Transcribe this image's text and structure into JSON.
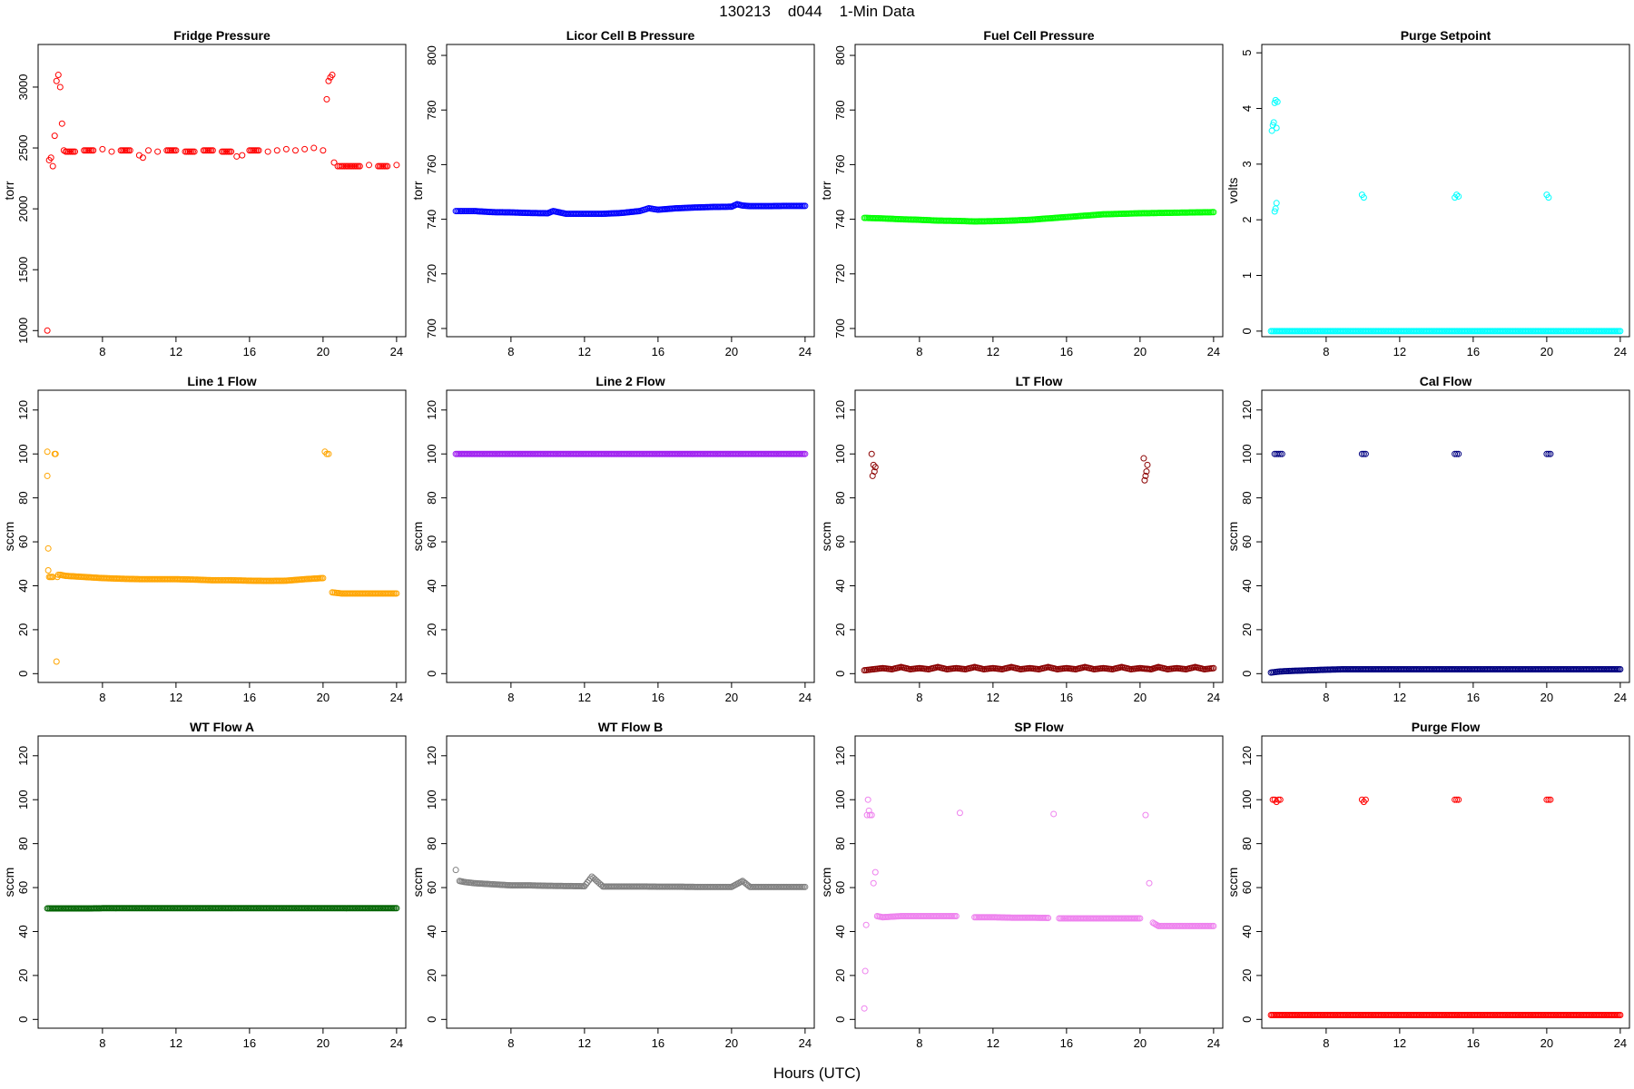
{
  "figure": {
    "title": "130213    d044    1-Min Data",
    "xlabel": "Hours (UTC)"
  },
  "chart_data": [
    {
      "type": "scatter",
      "title": "Fridge Pressure",
      "ylabel": "torr",
      "xlim": [
        4.5,
        24.5
      ],
      "ylim": [
        950,
        3350
      ],
      "xticks": [
        "8",
        "12",
        "16",
        "20",
        "24"
      ],
      "yticks": [
        "1000",
        "1500",
        "2000",
        "2500",
        "3000"
      ],
      "color": "#ff0000",
      "x": [
        5.0,
        5.1,
        5.2,
        5.3,
        5.4,
        5.5,
        5.6,
        5.7,
        5.8,
        5.9,
        6.0,
        6.5,
        7.0,
        7.5,
        8.0,
        8.5,
        9.0,
        9.5,
        10.0,
        10.2,
        10.5,
        11.0,
        11.5,
        12.0,
        12.5,
        13.0,
        13.5,
        14.0,
        14.5,
        15.0,
        15.3,
        15.6,
        16.0,
        16.5,
        17.0,
        17.5,
        18.0,
        18.5,
        19.0,
        19.5,
        20.0,
        20.2,
        20.3,
        20.4,
        20.5,
        20.6,
        20.8,
        21.0,
        21.5,
        22.0,
        22.5,
        23.0,
        23.5,
        24.0
      ],
      "y": [
        1000,
        2400,
        2420,
        2350,
        2600,
        3050,
        3100,
        3000,
        2700,
        2480,
        2470,
        2470,
        2480,
        2480,
        2490,
        2470,
        2480,
        2480,
        2440,
        2420,
        2480,
        2470,
        2480,
        2480,
        2470,
        2470,
        2480,
        2480,
        2470,
        2470,
        2430,
        2440,
        2480,
        2480,
        2470,
        2480,
        2490,
        2480,
        2490,
        2500,
        2480,
        2900,
        3050,
        3080,
        3100,
        2380,
        2350,
        2350,
        2350,
        2350,
        2360,
        2350,
        2350,
        2360
      ]
    },
    {
      "type": "scatter",
      "title": "Licor Cell B Pressure",
      "ylabel": "torr",
      "xlim": [
        4.5,
        24.5
      ],
      "ylim": [
        697,
        804
      ],
      "xticks": [
        "8",
        "12",
        "16",
        "20",
        "24"
      ],
      "yticks": [
        "700",
        "720",
        "740",
        "760",
        "780",
        "800"
      ],
      "color": "#0000ff",
      "x": [
        5.0,
        5.5,
        6.0,
        7.0,
        8.0,
        9.0,
        10.0,
        10.3,
        11.0,
        12.0,
        13.0,
        14.0,
        15.0,
        15.5,
        16.0,
        17.0,
        18.0,
        19.0,
        20.0,
        20.3,
        20.6,
        21.0,
        22.0,
        23.0,
        24.0
      ],
      "y": [
        743,
        743,
        743,
        742.6,
        742.5,
        742.3,
        742.2,
        743,
        742,
        742,
        742,
        742.3,
        743,
        744,
        743.5,
        744,
        744.3,
        744.5,
        744.6,
        745.5,
        745,
        744.8,
        744.8,
        744.9,
        744.9
      ]
    },
    {
      "type": "scatter",
      "title": "Fuel Cell Pressure",
      "ylabel": "torr",
      "xlim": [
        4.5,
        24.5
      ],
      "ylim": [
        697,
        804
      ],
      "xticks": [
        "8",
        "12",
        "16",
        "20",
        "24"
      ],
      "yticks": [
        "700",
        "720",
        "740",
        "760",
        "780",
        "800"
      ],
      "color": "#00ff00",
      "x": [
        5.0,
        6.0,
        7.0,
        8.0,
        9.0,
        10.0,
        11.0,
        12.0,
        13.0,
        14.0,
        15.0,
        16.0,
        17.0,
        18.0,
        19.0,
        20.0,
        21.0,
        22.0,
        23.0,
        24.0
      ],
      "y": [
        740.5,
        740.3,
        740,
        739.8,
        739.5,
        739.4,
        739.2,
        739.3,
        739.5,
        739.8,
        740.3,
        740.8,
        741.3,
        741.8,
        742,
        742.2,
        742.3,
        742.4,
        742.5,
        742.6
      ]
    },
    {
      "type": "scatter",
      "title": "Purge Setpoint",
      "ylabel": "volts",
      "xlim": [
        4.5,
        24.5
      ],
      "ylim": [
        -0.1,
        5.15
      ],
      "xticks": [
        "8",
        "12",
        "16",
        "20",
        "24"
      ],
      "yticks": [
        "0",
        "1",
        "2",
        "3",
        "4",
        "5"
      ],
      "color": "#00ffff",
      "x": [
        5.05,
        5.1,
        5.15,
        5.2,
        5.25,
        5.3,
        5.35,
        5.2,
        5.25,
        5.3,
        9.95,
        10.05,
        15.0,
        15.1,
        15.2,
        20.0,
        20.1,
        5.0,
        6.0,
        7.0,
        8.0,
        9.0,
        10.0,
        11.0,
        12.0,
        13.0,
        14.0,
        15.0,
        16.0,
        17.0,
        18.0,
        19.0,
        20.0,
        21.0,
        22.0,
        23.0,
        24.0
      ],
      "y": [
        3.6,
        3.7,
        3.75,
        4.1,
        4.15,
        3.65,
        4.12,
        2.15,
        2.2,
        2.3,
        2.45,
        2.4,
        2.4,
        2.45,
        2.42,
        2.45,
        2.4,
        0,
        0,
        0,
        0,
        0,
        0,
        0,
        0,
        0,
        0,
        0,
        0,
        0,
        0,
        0,
        0,
        0,
        0,
        0,
        0
      ]
    },
    {
      "type": "scatter",
      "title": "Line 1 Flow",
      "ylabel": "sccm",
      "xlim": [
        4.5,
        24.5
      ],
      "ylim": [
        -4,
        129
      ],
      "xticks": [
        "8",
        "12",
        "16",
        "20",
        "24"
      ],
      "yticks": [
        "0",
        "20",
        "40",
        "60",
        "80",
        "100",
        "120"
      ],
      "color": "#ffa500",
      "x": [
        5.0,
        5.0,
        5.05,
        5.05,
        5.1,
        5.3,
        5.4,
        5.45,
        5.5,
        5.55,
        5.6,
        5.7,
        6.0,
        7.0,
        8.0,
        9.0,
        10.0,
        11.0,
        12.0,
        13.0,
        14.0,
        15.0,
        16.0,
        17.0,
        18.0,
        19.0,
        20.0,
        20.1,
        20.2,
        20.3,
        20.5,
        21.0,
        22.0,
        23.0,
        24.0
      ],
      "y": [
        101,
        90,
        57,
        47,
        44,
        44,
        100,
        100,
        5.5,
        44,
        45,
        45,
        44.5,
        44,
        43.5,
        43.2,
        43,
        43,
        43,
        42.8,
        42.5,
        42.5,
        42.3,
        42.2,
        42.3,
        43,
        43.5,
        101,
        100,
        100,
        37,
        36.5,
        36.5,
        36.5,
        36.5
      ]
    },
    {
      "type": "scatter",
      "title": "Line 2 Flow",
      "ylabel": "sccm",
      "xlim": [
        4.5,
        24.5
      ],
      "ylim": [
        -4,
        129
      ],
      "xticks": [
        "8",
        "12",
        "16",
        "20",
        "24"
      ],
      "yticks": [
        "0",
        "20",
        "40",
        "60",
        "80",
        "100",
        "120"
      ],
      "color": "#a020f0",
      "x": [
        5.0,
        6.0,
        7.0,
        8.0,
        9.0,
        10.0,
        11.0,
        12.0,
        13.0,
        14.0,
        15.0,
        16.0,
        17.0,
        18.0,
        19.0,
        20.0,
        21.0,
        22.0,
        23.0,
        24.0
      ],
      "y": [
        100,
        100,
        100,
        100,
        100,
        100,
        100,
        100,
        100,
        100,
        100,
        100,
        100,
        100,
        100,
        100,
        100,
        100,
        100,
        100
      ]
    },
    {
      "type": "scatter",
      "title": "LT Flow",
      "ylabel": "sccm",
      "xlim": [
        4.5,
        24.5
      ],
      "ylim": [
        -4,
        129
      ],
      "xticks": [
        "8",
        "12",
        "16",
        "20",
        "24"
      ],
      "yticks": [
        "0",
        "20",
        "40",
        "60",
        "80",
        "100",
        "120"
      ],
      "color": "#8b0000",
      "x": [
        5.4,
        5.45,
        5.5,
        5.55,
        5.6,
        20.2,
        20.25,
        20.3,
        20.35,
        20.4,
        5.0,
        5.5,
        6.0,
        6.5,
        7.0,
        7.5,
        8.0,
        8.5,
        9.0,
        9.5,
        10.0,
        10.5,
        11.0,
        11.5,
        12.0,
        12.5,
        13.0,
        13.5,
        14.0,
        14.5,
        15.0,
        15.5,
        16.0,
        16.5,
        17.0,
        17.5,
        18.0,
        18.5,
        19.0,
        19.5,
        20.0,
        20.6,
        21.0,
        21.5,
        22.0,
        22.5,
        23.0,
        23.5,
        24.0
      ],
      "y": [
        100,
        90,
        95,
        92,
        94,
        98,
        88,
        90,
        92,
        95,
        1.5,
        2,
        2.5,
        2,
        3,
        2,
        2.5,
        2,
        3,
        2,
        2.5,
        2,
        3,
        2,
        2.5,
        2,
        3,
        2,
        2.5,
        2,
        3,
        2,
        2.5,
        2,
        3,
        2,
        2.5,
        2,
        3,
        2,
        2.5,
        2,
        3,
        2,
        2.5,
        2,
        3,
        2,
        2.5
      ]
    },
    {
      "type": "scatter",
      "title": "Cal Flow",
      "ylabel": "sccm",
      "xlim": [
        4.5,
        24.5
      ],
      "ylim": [
        -4,
        129
      ],
      "xticks": [
        "8",
        "12",
        "16",
        "20",
        "24"
      ],
      "yticks": [
        "0",
        "20",
        "40",
        "60",
        "80",
        "100",
        "120"
      ],
      "color": "#000080",
      "x": [
        5.2,
        5.3,
        5.4,
        5.5,
        5.6,
        9.95,
        10.05,
        10.15,
        15.0,
        15.1,
        15.2,
        20.0,
        20.1,
        20.2,
        5.0,
        5.5,
        6.0,
        7.0,
        8.0,
        9.0,
        10.0,
        11.0,
        12.0,
        13.0,
        14.0,
        15.0,
        16.0,
        17.0,
        18.0,
        19.0,
        20.0,
        21.0,
        22.0,
        23.0,
        24.0
      ],
      "y": [
        100,
        100,
        100,
        100,
        100,
        100,
        100,
        100,
        100,
        100,
        100,
        100,
        100,
        100,
        0.5,
        1,
        1.2,
        1.5,
        1.8,
        2,
        2,
        2,
        2,
        2,
        2,
        2,
        2,
        2,
        2,
        2,
        2,
        2,
        2,
        2,
        2
      ]
    },
    {
      "type": "scatter",
      "title": "WT Flow A",
      "ylabel": "sccm",
      "xlim": [
        4.5,
        24.5
      ],
      "ylim": [
        -4,
        129
      ],
      "xticks": [
        "8",
        "12",
        "16",
        "20",
        "24"
      ],
      "yticks": [
        "0",
        "20",
        "40",
        "60",
        "80",
        "100",
        "120"
      ],
      "color": "#006400",
      "x": [
        5.0,
        6.0,
        7.0,
        8.0,
        9.0,
        10.0,
        11.0,
        12.0,
        13.0,
        14.0,
        15.0,
        16.0,
        17.0,
        18.0,
        19.0,
        20.0,
        21.0,
        22.0,
        23.0,
        24.0
      ],
      "y": [
        50.5,
        50.5,
        50.5,
        50.6,
        50.6,
        50.6,
        50.6,
        50.6,
        50.6,
        50.6,
        50.6,
        50.6,
        50.6,
        50.6,
        50.6,
        50.6,
        50.6,
        50.6,
        50.6,
        50.6
      ]
    },
    {
      "type": "scatter",
      "title": "WT Flow B",
      "ylabel": "sccm",
      "xlim": [
        4.5,
        24.5
      ],
      "ylim": [
        -4,
        129
      ],
      "xticks": [
        "8",
        "12",
        "16",
        "20",
        "24"
      ],
      "yticks": [
        "0",
        "20",
        "40",
        "60",
        "80",
        "100",
        "120"
      ],
      "color": "#808080",
      "x": [
        5.0,
        5.2,
        5.5,
        6.0,
        7.0,
        8.0,
        9.0,
        10.0,
        11.0,
        12.0,
        12.4,
        13.0,
        14.0,
        15.0,
        16.0,
        17.0,
        18.0,
        19.0,
        20.0,
        20.6,
        21.0,
        22.0,
        23.0,
        24.0
      ],
      "y": [
        68,
        63,
        62.5,
        62,
        61.5,
        61,
        61,
        60.8,
        60.7,
        60.6,
        65,
        60.5,
        60.5,
        60.5,
        60.4,
        60.4,
        60.3,
        60.3,
        60.3,
        63,
        60.3,
        60.3,
        60.3,
        60.3
      ]
    },
    {
      "type": "scatter",
      "title": "SP Flow",
      "ylabel": "sccm",
      "xlim": [
        4.5,
        24.5
      ],
      "ylim": [
        -4,
        129
      ],
      "xticks": [
        "8",
        "12",
        "16",
        "20",
        "24"
      ],
      "yticks": [
        "0",
        "20",
        "40",
        "60",
        "80",
        "100",
        "120"
      ],
      "color": "#ee82ee",
      "x": [
        5.0,
        5.05,
        5.1,
        5.15,
        5.2,
        5.25,
        5.3,
        5.4,
        5.5,
        5.6,
        5.7,
        6.0,
        7.0,
        8.0,
        9.0,
        10.0,
        10.2,
        11.0,
        12.0,
        13.0,
        14.0,
        15.0,
        15.3,
        15.6,
        16.0,
        17.0,
        18.0,
        19.0,
        20.0,
        20.3,
        20.5,
        20.7,
        21.0,
        22.0,
        23.0,
        24.0
      ],
      "y": [
        5,
        22,
        43,
        93,
        100,
        95,
        93,
        93,
        62,
        67,
        47,
        46.5,
        47,
        47,
        47,
        47,
        94,
        46.5,
        46.5,
        46.3,
        46.3,
        46.2,
        93.5,
        46,
        46,
        46,
        46,
        46,
        46,
        93,
        62,
        44,
        42.5,
        42.5,
        42.5,
        42.5
      ]
    },
    {
      "type": "scatter",
      "title": "Purge Flow",
      "ylabel": "sccm",
      "xlim": [
        4.5,
        24.5
      ],
      "ylim": [
        -4,
        129
      ],
      "xticks": [
        "8",
        "12",
        "16",
        "20",
        "24"
      ],
      "yticks": [
        "0",
        "20",
        "40",
        "60",
        "80",
        "100",
        "120"
      ],
      "color": "#ff0000",
      "x": [
        5.1,
        5.2,
        5.3,
        5.4,
        5.5,
        9.95,
        10.05,
        10.15,
        15.0,
        15.1,
        15.2,
        20.0,
        20.1,
        20.2,
        5.0,
        6.0,
        7.0,
        8.0,
        9.0,
        10.0,
        11.0,
        12.0,
        13.0,
        14.0,
        15.0,
        16.0,
        17.0,
        18.0,
        19.0,
        20.0,
        21.0,
        22.0,
        23.0,
        24.0
      ],
      "y": [
        100,
        100,
        99,
        100,
        100,
        100,
        99,
        100,
        100,
        100,
        100,
        100,
        100,
        100,
        2,
        2,
        2,
        2,
        2,
        2,
        2,
        2,
        2,
        2,
        2,
        2,
        2,
        2,
        2,
        2,
        2,
        2,
        2,
        2
      ]
    }
  ]
}
